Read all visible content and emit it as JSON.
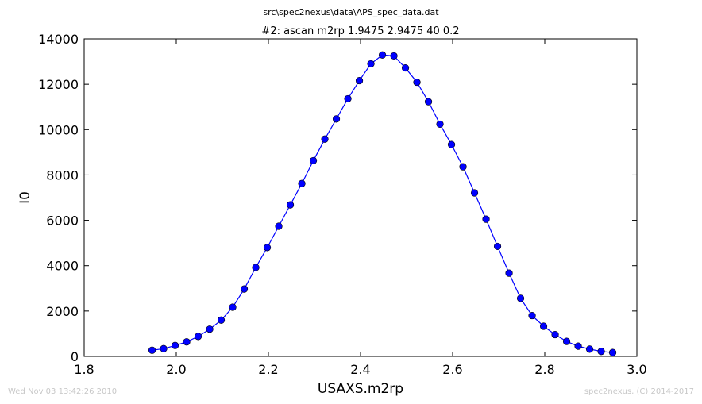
{
  "header": {
    "suptitle": "src\\spec2nexus\\data\\APS_spec_data.dat"
  },
  "footer": {
    "left": "Wed Nov 03 13:42:26 2010",
    "right": "spec2nexus, (C) 2014-2017"
  },
  "chart_data": {
    "type": "line",
    "title": "#2: ascan  m2rp 1.9475 2.9475  40 0.2",
    "xlabel": "USAXS.m2rp",
    "ylabel": "I0",
    "xlim": [
      1.8,
      3.0
    ],
    "ylim": [
      0,
      14000
    ],
    "xticks": [
      "1.8",
      "2.0",
      "2.2",
      "2.4",
      "2.6",
      "2.8",
      "3.0"
    ],
    "yticks": [
      "0",
      "2000",
      "4000",
      "6000",
      "8000",
      "10000",
      "12000",
      "14000"
    ],
    "grid": false,
    "legend": "none",
    "color": "#0000ff",
    "marker": "circle",
    "series": [
      {
        "x": [
          1.9475,
          1.9725,
          1.9975,
          2.0225,
          2.0475,
          2.0725,
          2.0975,
          2.1225,
          2.1475,
          2.1725,
          2.1975,
          2.2225,
          2.2475,
          2.2725,
          2.2975,
          2.3225,
          2.3475,
          2.3725,
          2.3975,
          2.4225,
          2.4475,
          2.4725,
          2.4975,
          2.5225,
          2.5475,
          2.5725,
          2.5975,
          2.6225,
          2.6475,
          2.6725,
          2.6975,
          2.7225,
          2.7475,
          2.7725,
          2.7975,
          2.8225,
          2.8475,
          2.8725,
          2.8975,
          2.9225,
          2.9475
        ],
        "y": [
          270,
          340,
          480,
          640,
          880,
          1200,
          1600,
          2170,
          2970,
          3920,
          4800,
          5740,
          6680,
          7620,
          8630,
          9580,
          10470,
          11360,
          12160,
          12900,
          13290,
          13250,
          12720,
          12090,
          11230,
          10240,
          9340,
          8360,
          7210,
          6050,
          4850,
          3670,
          2560,
          1800,
          1330,
          960,
          660,
          450,
          320,
          220,
          170
        ]
      }
    ]
  }
}
